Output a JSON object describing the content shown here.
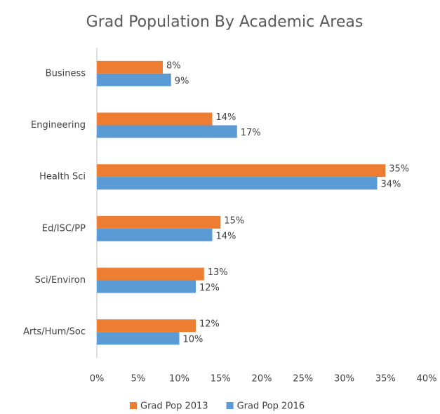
{
  "chart_data": {
    "type": "bar",
    "orientation": "horizontal",
    "title": "Grad Population By Academic Areas",
    "categories": [
      "Business",
      "Engineering",
      "Health Sci",
      "Ed/ISC/PP",
      "Sci/Environ",
      "Arts/Hum/Soc"
    ],
    "series": [
      {
        "name": "Grad Pop 2013",
        "color": "#ed7d31",
        "values": [
          8,
          14,
          35,
          15,
          13,
          12
        ],
        "value_labels": [
          "8%",
          "14%",
          "35%",
          "15%",
          "13%",
          "12%"
        ]
      },
      {
        "name": "Grad Pop 2016",
        "color": "#5b9bd5",
        "values": [
          9,
          17,
          34,
          14,
          12,
          10
        ],
        "value_labels": [
          "9%",
          "17%",
          "34%",
          "14%",
          "12%",
          "10%"
        ]
      }
    ],
    "xlim": [
      0,
      40
    ],
    "xticks": [
      {
        "value": 0,
        "label": "0%"
      },
      {
        "value": 5,
        "label": "5%"
      },
      {
        "value": 10,
        "label": "10%"
      },
      {
        "value": 15,
        "label": "15%"
      },
      {
        "value": 20,
        "label": "20%"
      },
      {
        "value": 25,
        "label": "25%"
      },
      {
        "value": 30,
        "label": "30%"
      },
      {
        "value": 35,
        "label": "35%"
      },
      {
        "value": 40,
        "label": "40%"
      }
    ],
    "grid": false,
    "legend": "bottom"
  }
}
